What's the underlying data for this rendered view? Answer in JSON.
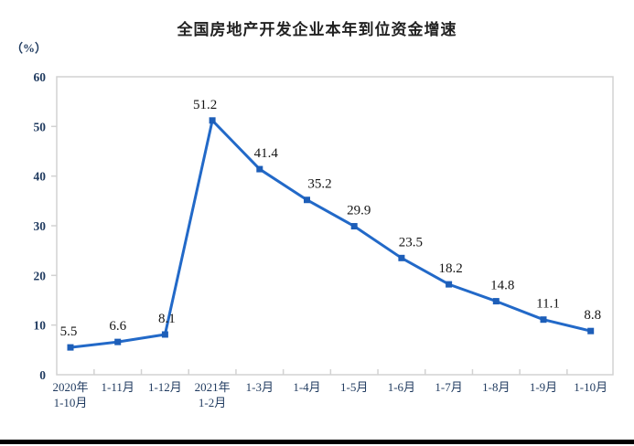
{
  "chart_data": {
    "type": "line",
    "title": "全国房地产开发企业本年到位资金增速",
    "unit_label": "（%）",
    "categories": [
      [
        "2020年",
        "1-10月"
      ],
      [
        "1-11月"
      ],
      [
        "1-12月"
      ],
      [
        "2021年",
        "1-2月"
      ],
      [
        "1-3月"
      ],
      [
        "1-4月"
      ],
      [
        "1-5月"
      ],
      [
        "1-6月"
      ],
      [
        "1-7月"
      ],
      [
        "1-8月"
      ],
      [
        "1-9月"
      ],
      [
        "1-10月"
      ]
    ],
    "values": [
      5.5,
      6.6,
      8.1,
      51.2,
      41.4,
      35.2,
      29.9,
      23.5,
      18.2,
      14.8,
      11.1,
      8.8
    ],
    "data_labels": [
      "5.5",
      "6.6",
      "8.1",
      "51.2",
      "41.4",
      "35.2",
      "29.9",
      "23.5",
      "18.2",
      "14.8",
      "11.1",
      "8.8"
    ],
    "y_ticks": [
      0,
      10,
      20,
      30,
      40,
      50,
      60
    ],
    "ylim": [
      0,
      60
    ],
    "grid": false,
    "legend_position": "none",
    "marker_shape": "square",
    "colors": {
      "line": "#2269c8",
      "marker": "#1d5eb8",
      "axis": "#d2d2d2",
      "data_label": "#151515",
      "axis_label": "#1f3a5f",
      "title": "#222222",
      "bottom_bar": "#000000"
    }
  }
}
